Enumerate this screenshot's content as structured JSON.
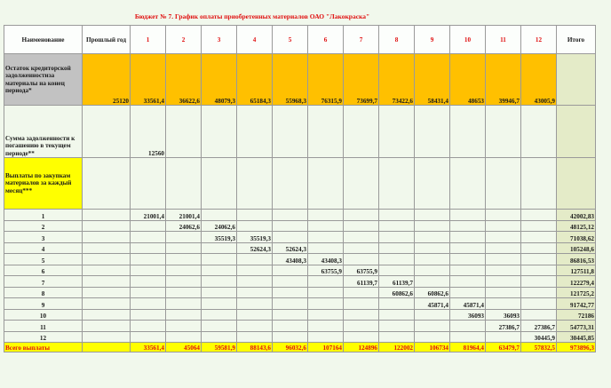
{
  "title": "Бюджет № 7. График оплаты приобретенных материалов ОАО \"Лакокраска\"",
  "header": {
    "name": "Наименование",
    "prev_year": "Прошлый год",
    "months": [
      "1",
      "2",
      "3",
      "4",
      "5",
      "6",
      "7",
      "8",
      "9",
      "10",
      "11",
      "12"
    ],
    "total": "Итого"
  },
  "row_opening": {
    "label": "Остаток кредиторской задолженностиза материалы на конец периода*",
    "prev": "25120",
    "months": [
      "33561,4",
      "36622,6",
      "48079,3",
      "65184,3",
      "55968,3",
      "76315,9",
      "73699,7",
      "73422,6",
      "58431,4",
      "48653",
      "39946,7",
      "43005,9"
    ],
    "total": ""
  },
  "row_repay": {
    "label": "Сумма задолженности к погашению в текущем периоде**",
    "prev": "",
    "months": [
      "12560",
      "",
      "",
      "",
      "",
      "",
      "",
      "",
      "",
      "",
      "",
      ""
    ],
    "total": ""
  },
  "row_payments": {
    "label": "Выплаты по закупкам материалов за каждый  месяц***",
    "prev": "",
    "months": [
      "",
      "",
      "",
      "",
      "",
      "",
      "",
      "",
      "",
      "",
      "",
      ""
    ],
    "total": ""
  },
  "payment_rows": [
    {
      "idx": "1",
      "prev": "",
      "months": [
        "21001,4",
        "21001,4",
        "",
        "",
        "",
        "",
        "",
        "",
        "",
        "",
        "",
        ""
      ],
      "total": "42002,83"
    },
    {
      "idx": "2",
      "prev": "",
      "months": [
        "",
        "24062,6",
        "24062,6",
        "",
        "",
        "",
        "",
        "",
        "",
        "",
        "",
        ""
      ],
      "total": "48125,12"
    },
    {
      "idx": "3",
      "prev": "",
      "months": [
        "",
        "",
        "35519,3",
        "35519,3",
        "",
        "",
        "",
        "",
        "",
        "",
        "",
        ""
      ],
      "total": "71038,62"
    },
    {
      "idx": "4",
      "prev": "",
      "months": [
        "",
        "",
        "",
        "52624,3",
        "52624,3",
        "",
        "",
        "",
        "",
        "",
        "",
        ""
      ],
      "total": "105248,6"
    },
    {
      "idx": "5",
      "prev": "",
      "months": [
        "",
        "",
        "",
        "",
        "43408,3",
        "43408,3",
        "",
        "",
        "",
        "",
        "",
        ""
      ],
      "total": "86816,53"
    },
    {
      "idx": "6",
      "prev": "",
      "months": [
        "",
        "",
        "",
        "",
        "",
        "63755,9",
        "63755,9",
        "",
        "",
        "",
        "",
        ""
      ],
      "total": "127511,8"
    },
    {
      "idx": "7",
      "prev": "",
      "months": [
        "",
        "",
        "",
        "",
        "",
        "",
        "61139,7",
        "61139,7",
        "",
        "",
        "",
        ""
      ],
      "total": "122279,4"
    },
    {
      "idx": "8",
      "prev": "",
      "months": [
        "",
        "",
        "",
        "",
        "",
        "",
        "",
        "60862,6",
        "60862,6",
        "",
        "",
        ""
      ],
      "total": "121725,2"
    },
    {
      "idx": "9",
      "prev": "",
      "months": [
        "",
        "",
        "",
        "",
        "",
        "",
        "",
        "",
        "45871,4",
        "45871,4",
        "",
        ""
      ],
      "total": "91742,77"
    },
    {
      "idx": "10",
      "prev": "",
      "months": [
        "",
        "",
        "",
        "",
        "",
        "",
        "",
        "",
        "",
        "36093",
        "36093",
        ""
      ],
      "total": "72186"
    },
    {
      "idx": "11",
      "prev": "",
      "months": [
        "",
        "",
        "",
        "",
        "",
        "",
        "",
        "",
        "",
        "",
        "27386,7",
        "27386,7"
      ],
      "total": "54773,31"
    },
    {
      "idx": "12",
      "prev": "",
      "months": [
        "",
        "",
        "",
        "",
        "",
        "",
        "",
        "",
        "",
        "",
        "",
        "30445,9"
      ],
      "total": "30445,85"
    }
  ],
  "row_total": {
    "label": "Всего выплаты",
    "prev": "",
    "months": [
      "33561,4",
      "45064",
      "59581,9",
      "88143,6",
      "96032,6",
      "107164",
      "124896",
      "122002",
      "106734",
      "81964,4",
      "63479,7",
      "57832,5"
    ],
    "total": "973896,3"
  }
}
